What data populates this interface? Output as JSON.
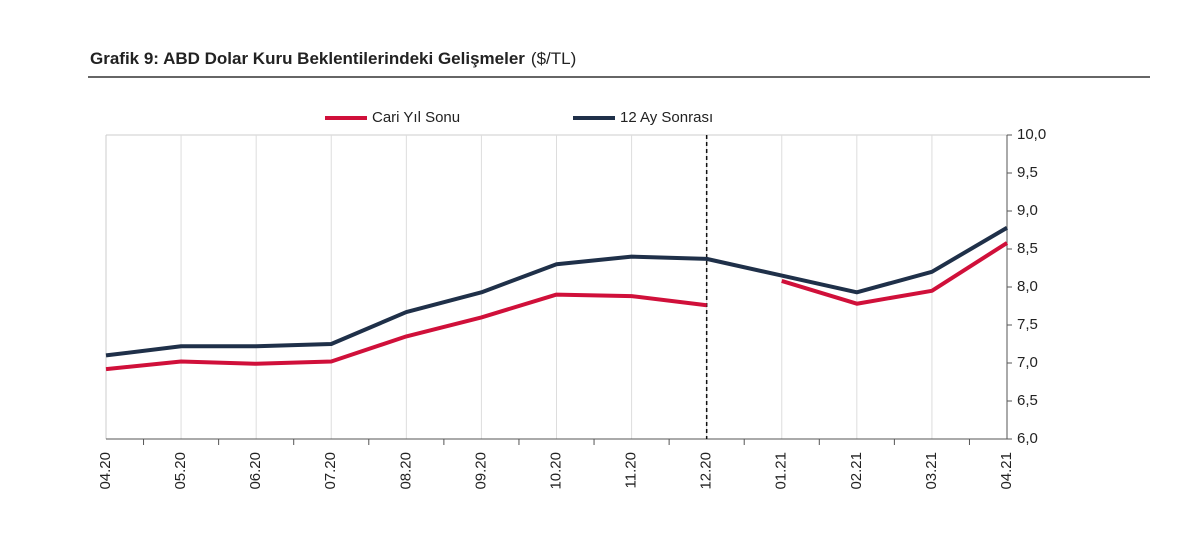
{
  "chart_data": {
    "type": "line",
    "title": "Grafik 9: ABD Dolar Kuru Beklentilerindeki Gelişmeler",
    "subtitle": "($/TL)",
    "categories": [
      "04.20",
      "05.20",
      "06.20",
      "07.20",
      "08.20",
      "09.20",
      "10.20",
      "11.20",
      "12.20",
      "01.21",
      "02.21",
      "03.21",
      "04.21"
    ],
    "series": [
      {
        "name": "Cari Yıl Sonu",
        "color": "#d0103a",
        "break_at_divider": true,
        "values": [
          6.92,
          7.02,
          6.99,
          7.02,
          7.35,
          7.6,
          7.9,
          7.88,
          7.76,
          8.08,
          7.78,
          7.95,
          8.58
        ]
      },
      {
        "name": "12 Ay Sonrası",
        "color": "#1f3049",
        "break_at_divider": false,
        "values": [
          7.1,
          7.22,
          7.22,
          7.25,
          7.67,
          7.93,
          8.3,
          8.4,
          8.37,
          8.15,
          7.93,
          8.2,
          8.78
        ]
      }
    ],
    "divider": {
      "category_index": 8,
      "style": "dashed"
    },
    "ylim": [
      6,
      10
    ],
    "yticks": [
      {
        "value": 6,
        "label": "6,0"
      },
      {
        "value": 6.5,
        "label": "6,5"
      },
      {
        "value": 7,
        "label": "7,0"
      },
      {
        "value": 7.5,
        "label": "7,5"
      },
      {
        "value": 8,
        "label": "8,0"
      },
      {
        "value": 8.5,
        "label": "8,5"
      },
      {
        "value": 9,
        "label": "9,0"
      },
      {
        "value": 9.5,
        "label": "9,5"
      },
      {
        "value": 10,
        "label": "10,0"
      }
    ],
    "y_axis_side": "right",
    "grid": "vertical"
  }
}
